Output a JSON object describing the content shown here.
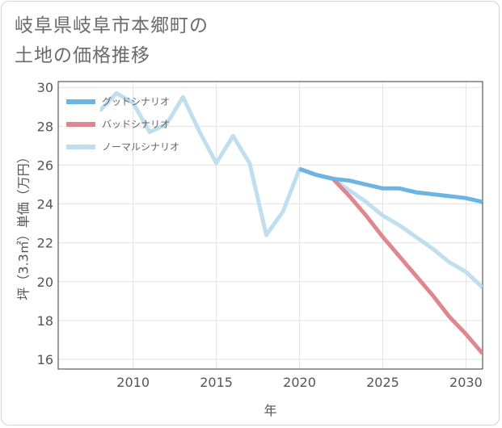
{
  "title_line1": "岐阜県岐阜市本郷町の",
  "title_line2": "土地の価格推移",
  "chart_data": {
    "type": "line",
    "xlabel": "年",
    "ylabel": "坪（3.3㎡）単価（万円）",
    "xlim": [
      2005.5,
      2031
    ],
    "ylim": [
      15.5,
      30.3
    ],
    "xticks": [
      2010,
      2015,
      2020,
      2025,
      2030
    ],
    "yticks": [
      16,
      18,
      20,
      22,
      24,
      26,
      28,
      30
    ],
    "grid": true,
    "legend_position": "top-left",
    "series": [
      {
        "name": "グッドシナリオ",
        "color": "#6cb4e4",
        "x": [
          2020,
          2021,
          2022,
          2023,
          2024,
          2025,
          2026,
          2027,
          2028,
          2029,
          2030,
          2031
        ],
        "values": [
          25.8,
          25.5,
          25.3,
          25.2,
          25.0,
          24.8,
          24.8,
          24.6,
          24.5,
          24.4,
          24.3,
          24.1
        ]
      },
      {
        "name": "バッドシナリオ",
        "color": "#e0868f",
        "x": [
          2020,
          2021,
          2022,
          2023,
          2024,
          2025,
          2026,
          2027,
          2028,
          2029,
          2030,
          2031
        ],
        "values": [
          25.8,
          25.5,
          25.3,
          24.4,
          23.4,
          22.3,
          21.3,
          20.3,
          19.3,
          18.2,
          17.3,
          16.3
        ]
      },
      {
        "name": "ノーマルシナリオ",
        "color": "#bfdfee",
        "x": [
          2008,
          2009,
          2010,
          2011,
          2012,
          2013,
          2014,
          2015,
          2016,
          2017,
          2018,
          2019,
          2020,
          2021,
          2022,
          2023,
          2024,
          2025,
          2026,
          2027,
          2028,
          2029,
          2030,
          2031
        ],
        "values": [
          28.8,
          29.7,
          29.2,
          27.7,
          28.1,
          29.5,
          27.7,
          26.1,
          27.5,
          26.1,
          22.4,
          23.6,
          25.8,
          25.5,
          25.3,
          24.7,
          24.1,
          23.4,
          22.9,
          22.3,
          21.7,
          21.0,
          20.5,
          19.7
        ]
      }
    ]
  }
}
